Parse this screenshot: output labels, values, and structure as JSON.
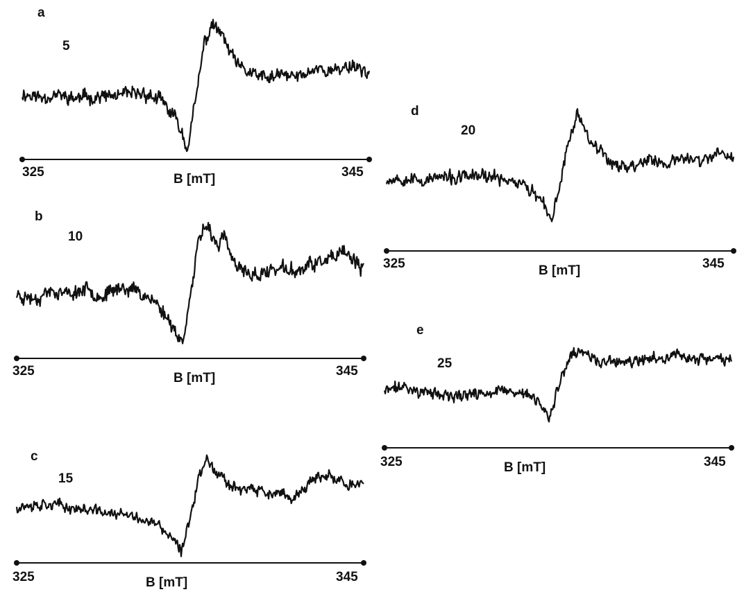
{
  "chart_data": [
    {
      "type": "line",
      "panel": "a",
      "series_label": "5",
      "xlabel": "B [mT]",
      "xlim": [
        325,
        345
      ],
      "xticks": [
        "325",
        "345"
      ],
      "x": [
        325,
        326,
        327,
        328,
        329,
        330,
        331,
        332,
        333,
        334,
        334.5,
        335,
        335.5,
        336,
        336.5,
        337,
        337.5,
        338,
        339,
        340,
        341,
        342,
        343,
        344,
        345
      ],
      "y": [
        0.05,
        0.0,
        0.03,
        -0.02,
        0.01,
        0.0,
        0.03,
        0.05,
        -0.05,
        -0.35,
        -0.7,
        -0.05,
        0.75,
        1.0,
        0.85,
        0.6,
        0.4,
        0.35,
        0.25,
        0.3,
        0.28,
        0.4,
        0.35,
        0.45,
        0.33
      ]
    },
    {
      "type": "line",
      "panel": "b",
      "series_label": "10",
      "xlabel": "B [mT]",
      "xlim": [
        325,
        345
      ],
      "xticks": [
        "325",
        "345"
      ],
      "x": [
        325,
        326,
        327,
        328,
        329,
        330,
        331,
        332,
        333,
        334,
        334.5,
        335,
        335.5,
        336,
        336.5,
        337,
        337.5,
        338,
        339,
        340,
        341,
        342,
        343,
        344,
        345
      ],
      "y": [
        0.0,
        -0.05,
        0.05,
        0.0,
        0.08,
        -0.02,
        0.1,
        0.05,
        -0.1,
        -0.4,
        -0.65,
        -0.05,
        0.7,
        0.95,
        0.65,
        0.75,
        0.4,
        0.3,
        0.25,
        0.35,
        0.3,
        0.4,
        0.45,
        0.55,
        0.3
      ]
    },
    {
      "type": "line",
      "panel": "c",
      "series_label": "15",
      "xlabel": "B [mT]",
      "xlim": [
        325,
        345
      ],
      "xticks": [
        "325",
        "345"
      ],
      "x": [
        325,
        326,
        327,
        328,
        329,
        330,
        331,
        332,
        333,
        334,
        334.5,
        335,
        335.5,
        336,
        336.5,
        337,
        337.5,
        338,
        339,
        340,
        341,
        342,
        343,
        344,
        345
      ],
      "y": [
        0.05,
        0.08,
        0.1,
        0.03,
        0.0,
        -0.05,
        -0.08,
        -0.15,
        -0.25,
        -0.5,
        -0.75,
        -0.1,
        0.55,
        0.9,
        0.65,
        0.5,
        0.4,
        0.35,
        0.3,
        0.25,
        0.2,
        0.5,
        0.55,
        0.45,
        0.4
      ]
    },
    {
      "type": "line",
      "panel": "d",
      "series_label": "20",
      "xlabel": "B [mT]",
      "xlim": [
        325,
        345
      ],
      "xticks": [
        "325",
        "345"
      ],
      "x": [
        325,
        326,
        327,
        328,
        329,
        330,
        331,
        332,
        333,
        334,
        334.5,
        335,
        335.5,
        336,
        336.5,
        337,
        337.5,
        338,
        339,
        340,
        341,
        342,
        343,
        344,
        345
      ],
      "y": [
        0.0,
        0.02,
        -0.03,
        0.02,
        0.0,
        0.05,
        0.02,
        0.0,
        -0.1,
        -0.35,
        -0.65,
        -0.05,
        0.55,
        0.95,
        0.7,
        0.5,
        0.35,
        0.25,
        0.15,
        0.3,
        0.2,
        0.3,
        0.25,
        0.35,
        0.3
      ]
    },
    {
      "type": "line",
      "panel": "e",
      "series_label": "25",
      "xlabel": "B [mT]",
      "xlim": [
        325,
        345
      ],
      "xticks": [
        "325",
        "345"
      ],
      "x": [
        325,
        326,
        327,
        328,
        329,
        330,
        331,
        332,
        333,
        334,
        334.5,
        335,
        335.5,
        336,
        336.5,
        337,
        337.5,
        338,
        339,
        340,
        341,
        342,
        343,
        344,
        345
      ],
      "y": [
        0.0,
        0.08,
        0.0,
        -0.05,
        -0.1,
        -0.05,
        -0.02,
        0.0,
        -0.05,
        -0.2,
        -0.45,
        0.05,
        0.4,
        0.65,
        0.6,
        0.55,
        0.45,
        0.5,
        0.45,
        0.5,
        0.55,
        0.6,
        0.5,
        0.55,
        0.5
      ]
    }
  ]
}
